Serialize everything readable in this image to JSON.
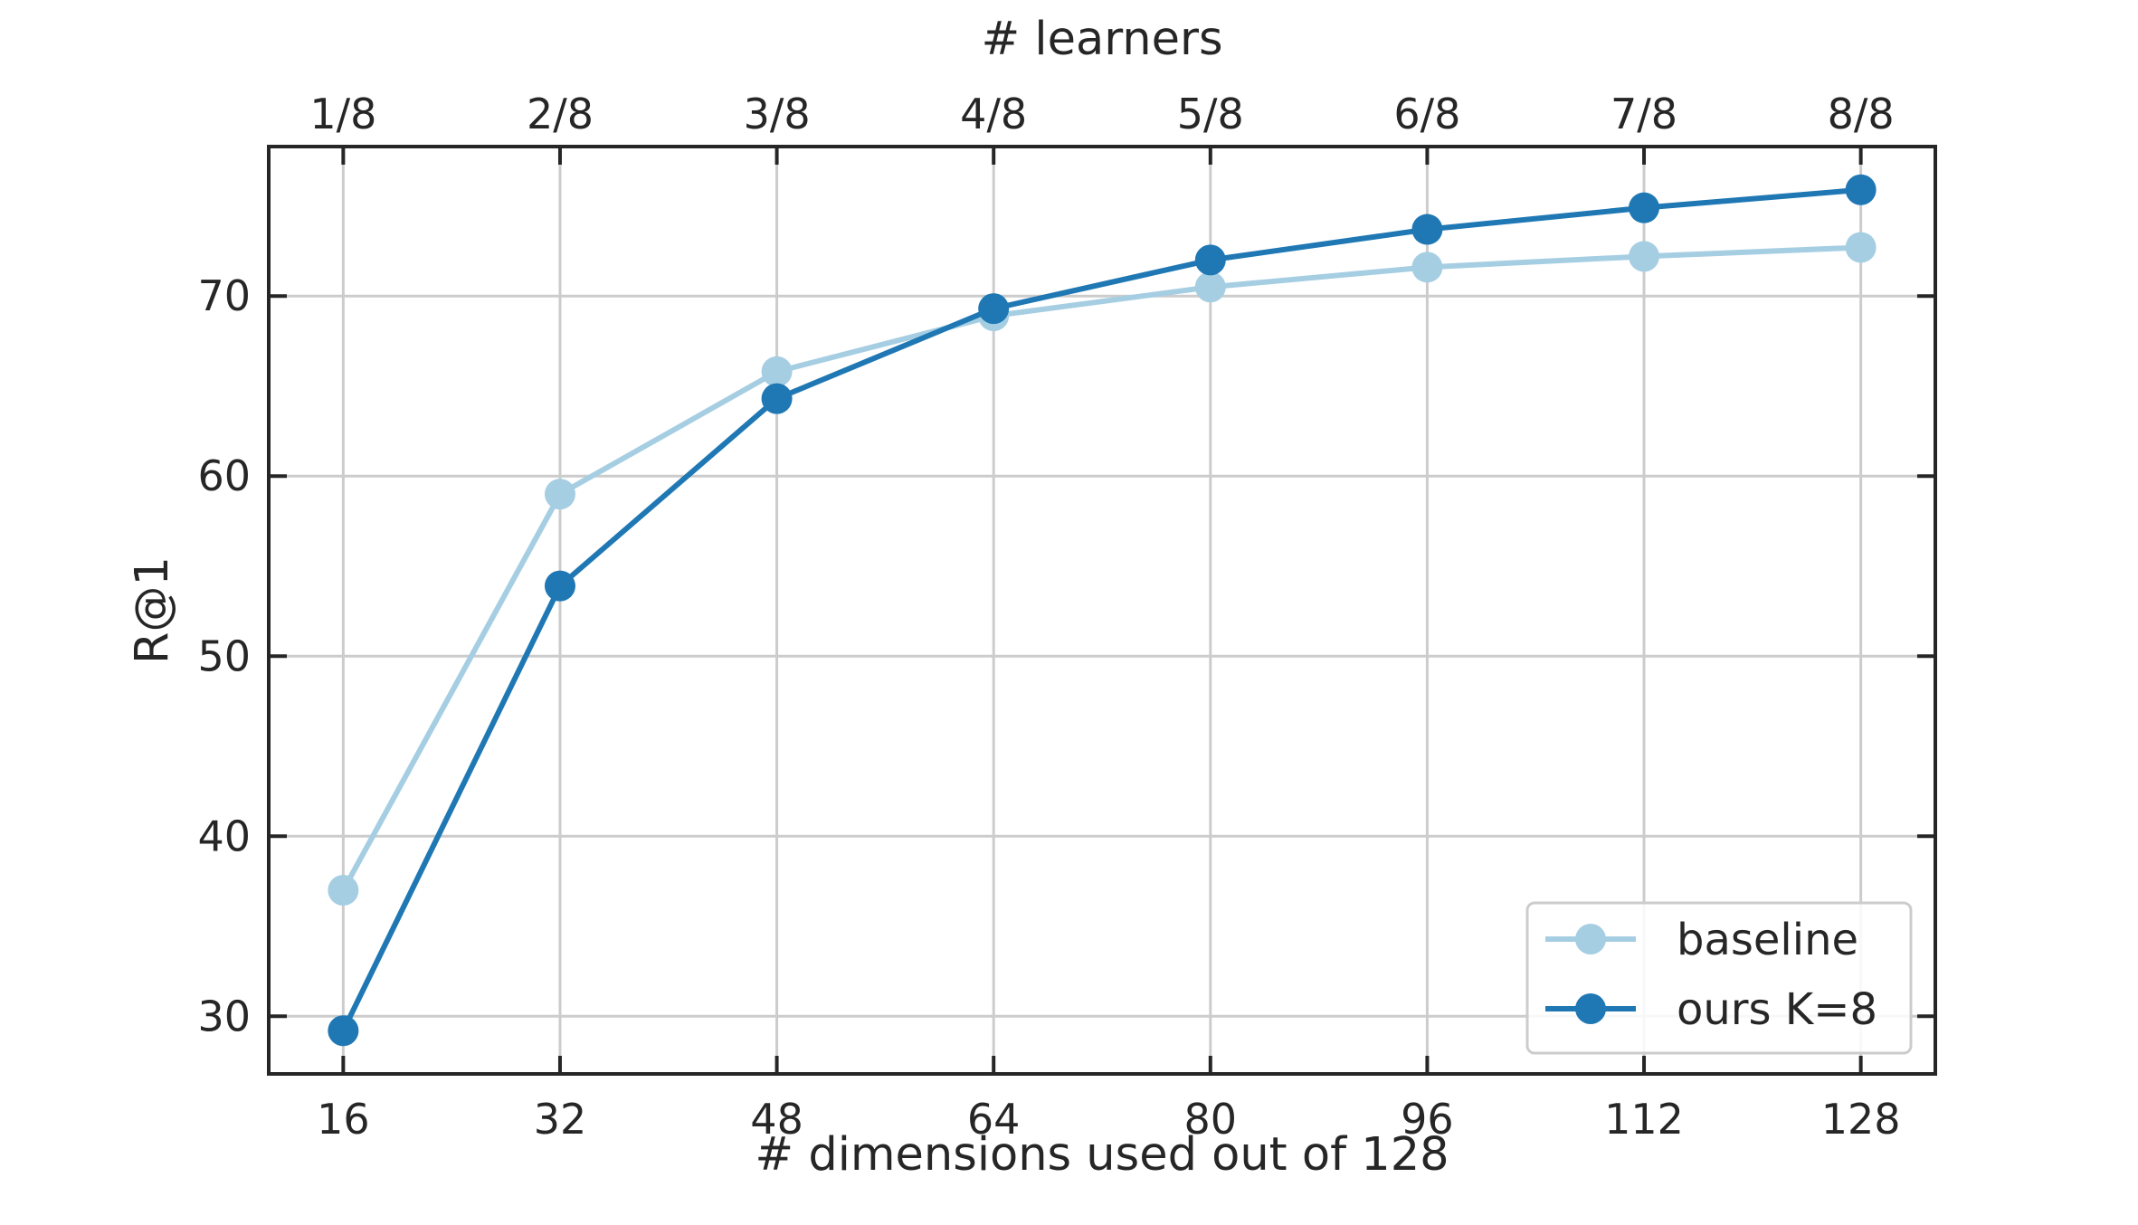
{
  "chart_data": {
    "type": "line",
    "xlabel": "# dimensions used out of 128",
    "x2label": "# learners",
    "ylabel": "R@1",
    "x": [
      16,
      32,
      48,
      64,
      80,
      96,
      112,
      128
    ],
    "x_tick_labels": [
      "16",
      "32",
      "48",
      "64",
      "80",
      "96",
      "112",
      "128"
    ],
    "x2_tick_labels": [
      "1/8",
      "2/8",
      "3/8",
      "4/8",
      "5/8",
      "6/8",
      "7/8",
      "8/8"
    ],
    "y_ticks": [
      30,
      40,
      50,
      60,
      70
    ],
    "y_tick_labels": [
      "30",
      "40",
      "50",
      "60",
      "70"
    ],
    "xlim": [
      10.5,
      133.5
    ],
    "ylim": [
      26.8,
      78.3
    ],
    "grid": true,
    "legend_position": "bottom-right",
    "series": [
      {
        "name": "baseline",
        "color": "#a6cee3",
        "values": [
          37.0,
          59.0,
          65.8,
          68.9,
          70.5,
          71.6,
          72.2,
          72.7
        ]
      },
      {
        "name": "ours K=8",
        "color": "#1f78b4",
        "values": [
          29.2,
          53.9,
          64.3,
          69.3,
          72.0,
          73.7,
          74.9,
          75.9
        ]
      }
    ]
  }
}
